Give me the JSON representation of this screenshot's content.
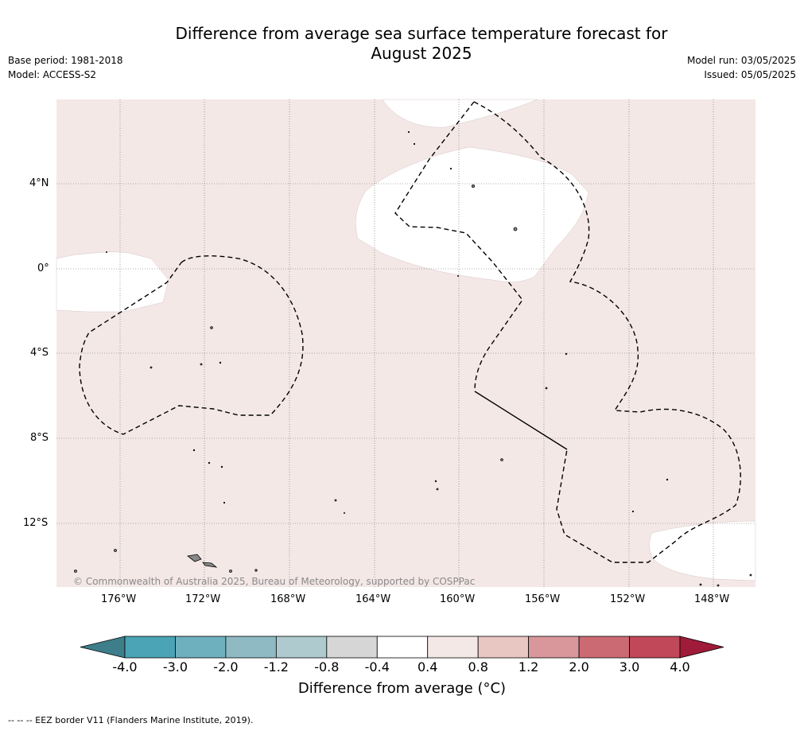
{
  "title_line1": "Difference from average sea surface temperature forecast for",
  "title_line2": "August 2025",
  "base_period": "Base period: 1981-2018",
  "model": "Model: ACCESS-S2",
  "model_run": "Model run: 03/05/2025",
  "issued": "Issued: 05/05/2025",
  "copyright": "© Commonwealth of Australia 2025, Bureau of Meteorology, supported by COSPPac",
  "lat_labels": [
    "4°N",
    "0°",
    "4°S",
    "8°S",
    "12°S"
  ],
  "lon_labels": [
    "176°W",
    "172°W",
    "168°W",
    "164°W",
    "160°W",
    "156°W",
    "152°W",
    "148°W"
  ],
  "colorbar": {
    "title": "Difference from average (°C)",
    "tick_labels": [
      "-4.0",
      "-3.0",
      "-2.0",
      "-1.2",
      "-0.8",
      "-0.4",
      "0.4",
      "0.8",
      "1.2",
      "2.0",
      "3.0",
      "4.0"
    ],
    "colors": [
      "#3d7e8a",
      "#4aa4b5",
      "#6fb0bf",
      "#8fbac4",
      "#aecacf",
      "#d6d6d6",
      "#ffffff",
      "#f4e8e7",
      "#e8c6c1",
      "#d9969b",
      "#cc6a74",
      "#c04858",
      "#a01a3a"
    ]
  },
  "map": {
    "background_color": "#f4e8e7",
    "neutral_color": "#ffffff"
  },
  "footnote": "--  --  -- EEZ border V11 (Flanders Marine Institute, 2019)."
}
